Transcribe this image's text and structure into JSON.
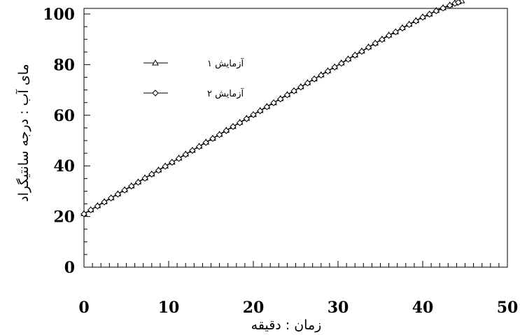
{
  "chart_data": {
    "type": "line",
    "title": "",
    "xlabel": "زمان : دقیقه",
    "ylabel": "ماى آب : درجه سانتیگراد",
    "xlim": [
      0,
      50
    ],
    "ylim": [
      0,
      100
    ],
    "xticks": [
      0,
      10,
      20,
      30,
      40,
      50
    ],
    "yticks": [
      0,
      20,
      40,
      60,
      80,
      100
    ],
    "grid": false,
    "legend_position": "upper-left",
    "series": [
      {
        "name": "آزمایش ۱",
        "marker": "triangle",
        "color": "#000000",
        "x": [
          0,
          0.8,
          1.6,
          2.4,
          3.2,
          4.0,
          4.8,
          5.6,
          6.4,
          7.2,
          8.0,
          8.8,
          9.6,
          10.4,
          11.2,
          12.0,
          12.8,
          13.6,
          14.4,
          15.2,
          16.0,
          16.8,
          17.6,
          18.4,
          19.2,
          20.0,
          20.8,
          21.6,
          22.4,
          23.2,
          24.0,
          24.8,
          25.6,
          26.4,
          27.2,
          28.0,
          28.8,
          29.6,
          30.4,
          31.2,
          32.0,
          32.8,
          33.6,
          34.4,
          35.2,
          36.0,
          36.8,
          37.6,
          38.4,
          39.2,
          40.0,
          40.8,
          41.6,
          42.4,
          43.2,
          43.8,
          44.2,
          44.6
        ],
        "y": [
          21.2,
          22.7,
          24.3,
          25.9,
          27.4,
          29.0,
          30.6,
          32.1,
          33.7,
          35.3,
          36.8,
          38.4,
          40.0,
          41.5,
          43.1,
          44.7,
          46.2,
          47.8,
          49.4,
          50.9,
          52.5,
          54.1,
          55.6,
          57.2,
          58.8,
          60.3,
          61.9,
          63.5,
          65.0,
          66.6,
          68.2,
          69.7,
          71.3,
          72.9,
          74.4,
          76.0,
          77.6,
          79.1,
          80.7,
          82.3,
          83.8,
          85.4,
          87.0,
          88.5,
          90.1,
          91.7,
          93.0,
          94.6,
          96.0,
          97.4,
          98.9,
          100.0,
          101.4,
          102.5,
          103.6,
          104.4,
          104.8,
          105.2
        ]
      },
      {
        "name": "آزمایش ۲",
        "marker": "diamond",
        "color": "#000000",
        "x": [
          0,
          0.8,
          1.6,
          2.4,
          3.2,
          4.0,
          4.8,
          5.6,
          6.4,
          7.2,
          8.0,
          8.8,
          9.6,
          10.4,
          11.2,
          12.0,
          12.8,
          13.6,
          14.4,
          15.2,
          16.0,
          16.8,
          17.6,
          18.4,
          19.2,
          20.0,
          20.8,
          21.6,
          22.4,
          23.2,
          24.0,
          24.8,
          25.6,
          26.4,
          27.2,
          28.0,
          28.8,
          29.6,
          30.4,
          31.2,
          32.0,
          32.8,
          33.6,
          34.4,
          35.2,
          36.0,
          36.8,
          37.6,
          38.4,
          39.2,
          40.0,
          40.8,
          41.6,
          42.4,
          43.2,
          43.8,
          44.2
        ],
        "y": [
          21.0,
          22.6,
          24.1,
          25.7,
          27.3,
          28.8,
          30.4,
          32.0,
          33.5,
          35.1,
          36.7,
          38.2,
          39.8,
          41.4,
          42.9,
          44.5,
          46.1,
          47.6,
          49.2,
          50.8,
          52.3,
          53.9,
          55.5,
          57.0,
          58.6,
          60.2,
          61.7,
          63.3,
          64.9,
          66.4,
          68.0,
          69.6,
          71.1,
          72.7,
          74.3,
          75.8,
          77.4,
          79.0,
          80.5,
          82.1,
          83.7,
          85.2,
          86.8,
          88.4,
          89.9,
          91.5,
          92.9,
          94.4,
          95.8,
          97.2,
          98.7,
          99.9,
          101.2,
          102.3,
          103.4,
          104.2,
          104.6
        ]
      }
    ]
  }
}
